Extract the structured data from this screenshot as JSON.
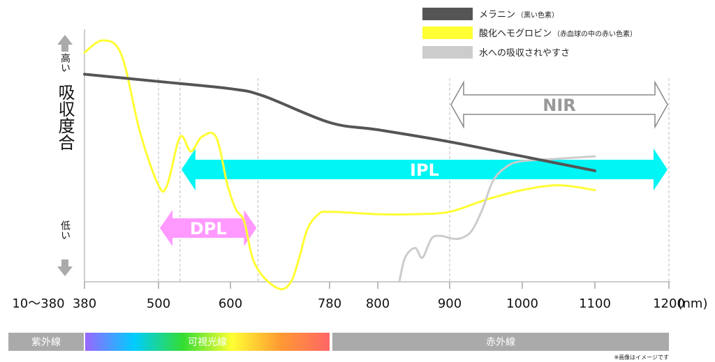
{
  "chart_data": {
    "type": "line",
    "x_ticks": [
      "380",
      "500",
      "600",
      "780",
      "800",
      "900",
      "1000",
      "1100",
      "1200"
    ],
    "x_first_label": "10〜380",
    "x_unit": "(nm)",
    "ylabel": "吸収度合",
    "y_high": "高い",
    "y_low": "低い",
    "y_range": [
      0,
      100
    ],
    "grid": "dashed vertical guides at 500, 530, 650, 900, 1200",
    "legend_placement": "top-right",
    "series": [
      {
        "name": "メラニン",
        "note": "（黒い色素）",
        "color": "#555555",
        "x": [
          380,
          500,
          600,
          660,
          780,
          800,
          900,
          1000,
          1100
        ],
        "y": [
          86,
          83,
          80,
          77,
          66,
          63,
          58,
          52,
          46
        ]
      },
      {
        "name": "酸化ヘモグロビン",
        "note": "（赤血球の中の赤い色素）",
        "color": "#ffff33",
        "x": [
          380,
          410,
          440,
          470,
          500,
          512,
          530,
          545,
          560,
          580,
          596,
          610,
          625,
          640,
          660,
          690,
          710,
          725,
          740,
          760,
          780,
          800,
          850,
          900,
          950,
          1000,
          1050,
          1100
        ],
        "y": [
          95,
          100,
          94,
          62,
          40,
          40,
          60,
          54,
          60,
          60,
          40,
          30,
          25,
          10,
          2,
          -3,
          0,
          10,
          22,
          28,
          29,
          28,
          28,
          29,
          34,
          38,
          40,
          38
        ],
        "line_width": 3
      },
      {
        "name": "水への吸収されやすさ",
        "note": "",
        "color": "#cccccc",
        "x": [
          830,
          838,
          852,
          862,
          875,
          888,
          902,
          915,
          930,
          945,
          960,
          980,
          1000,
          1050,
          1100
        ],
        "y": [
          0,
          10,
          14,
          10,
          18,
          19,
          18,
          18,
          21,
          30,
          42,
          48,
          50,
          51,
          52
        ],
        "line_width": 3
      }
    ],
    "annotations": [
      {
        "label": "DPL",
        "from": 500,
        "to": 650,
        "color": "#ff99ff",
        "text_color": "#ffffff"
      },
      {
        "label": "IPL",
        "from": 530,
        "to": 1200,
        "color": "#00f5f5",
        "text_color": "#ffffff"
      },
      {
        "label": "NIR",
        "from": 900,
        "to": 1200,
        "color": "#ffffff",
        "text_color": "#999999",
        "outline": "#888888"
      }
    ],
    "bands": [
      {
        "label": "紫外線",
        "color": "#aaaaaa"
      },
      {
        "label": "可視光線",
        "gradient": [
          "#9966ff",
          "#00ccff",
          "#33dd33",
          "#ffff33",
          "#ff9933",
          "#ff6666"
        ]
      },
      {
        "label": "赤外線",
        "color": "#aaaaaa"
      }
    ],
    "note": "※画像はイメージです"
  }
}
